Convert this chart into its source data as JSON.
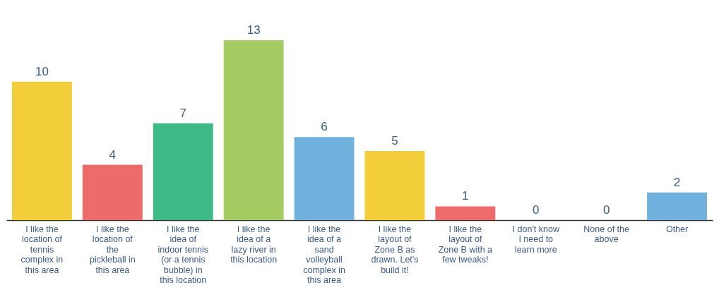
{
  "chart_data": {
    "type": "bar",
    "categories": [
      "I like the location of tennis complex in this area",
      "I like the location of the pickleball in this area",
      "I like the idea of indoor tennis (or a tennis bubble) in this location",
      "I like the idea of a lazy river in this location",
      "I like the idea of a sand volleyball complex in this area",
      "I like the layout of Zone B as drawn. Let's build it!",
      "I like the layout of Zone B with a few tweaks!",
      "I don't know I need to learn more",
      "None of the above",
      "Other"
    ],
    "values": [
      10,
      4,
      7,
      13,
      6,
      5,
      1,
      0,
      0,
      2
    ],
    "colors": [
      "#f2cf3a",
      "#ee6b6b",
      "#3dba86",
      "#a4cc62",
      "#70b2dd",
      "#f2cf3a",
      "#ee6b6b",
      "#a4cc62",
      "#70b2dd",
      "#70b2dd"
    ],
    "data_labels": true,
    "tick_labels": "x"
  }
}
